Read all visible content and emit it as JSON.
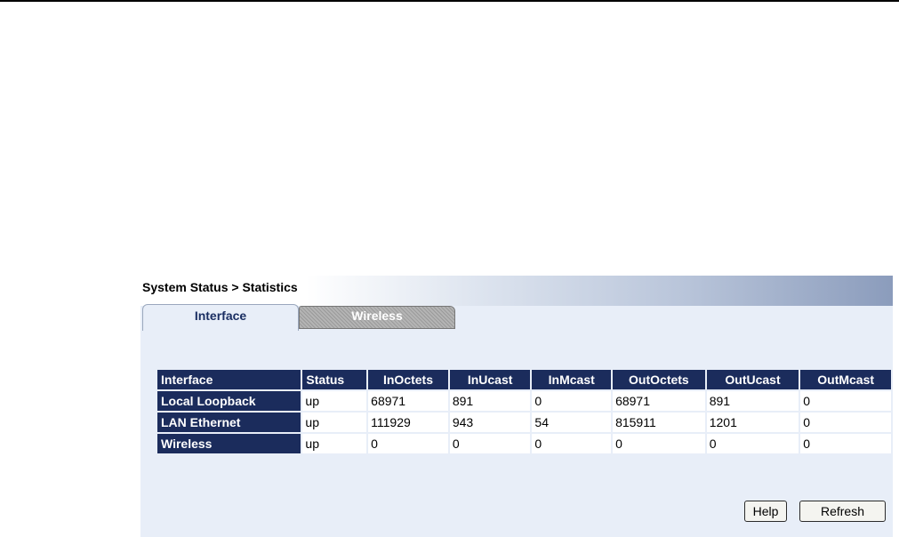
{
  "breadcrumb": "System Status > Statistics",
  "tabs": [
    {
      "label": "Interface",
      "active": true
    },
    {
      "label": "Wireless",
      "active": false
    }
  ],
  "table": {
    "headers": [
      "Interface",
      "Status",
      "InOctets",
      "InUcast",
      "InMcast",
      "OutOctets",
      "OutUcast",
      "OutMcast"
    ],
    "rows": [
      {
        "interface": "Local Loopback",
        "cells": [
          "up",
          "68971",
          "891",
          "0",
          "68971",
          "891",
          "0"
        ]
      },
      {
        "interface": "LAN Ethernet",
        "cells": [
          "up",
          "111929",
          "943",
          "54",
          "815911",
          "1201",
          "0"
        ]
      },
      {
        "interface": "Wireless",
        "cells": [
          "up",
          "0",
          "0",
          "0",
          "0",
          "0",
          "0"
        ]
      }
    ]
  },
  "buttons": {
    "help": "Help",
    "refresh": "Refresh"
  },
  "colors": {
    "header_bg": "#1b2c5c",
    "panel_bg": "#e8eef8",
    "tab_active_text": "#1a2e62"
  }
}
